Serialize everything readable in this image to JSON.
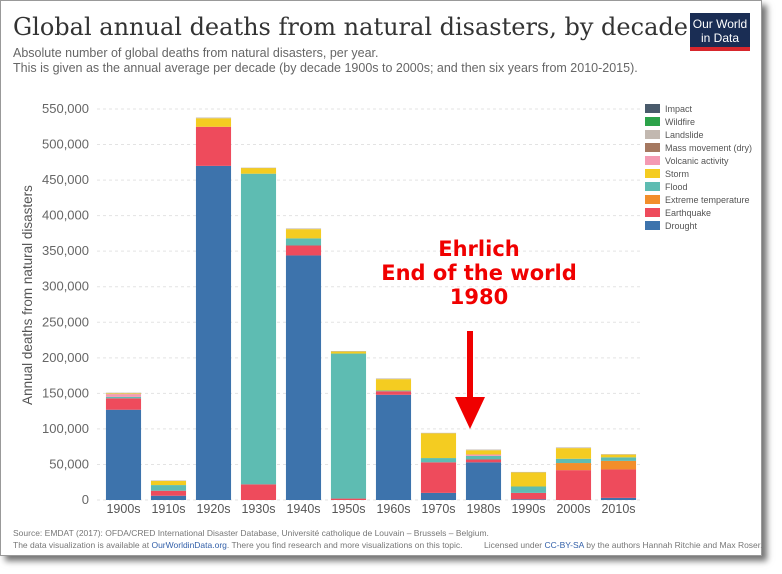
{
  "header": {
    "title": "Global annual deaths from natural disasters, by decade",
    "subtitle_line1": "Absolute number of global deaths from natural disasters, per year.",
    "subtitle_line2": "This is given as the annual average per decade (by decade 1900s to 2000s; and then six years from 2010-2015)."
  },
  "logo": {
    "line1": "Our World",
    "line2": "in Data"
  },
  "annotation": {
    "line1": "Ehrlich",
    "line2": "End of the world",
    "line3": "1980"
  },
  "footer": {
    "source": "Source: EMDAT (2017): OFDA/CRED International Disaster Database, Université catholique de Louvain – Brussels – Belgium.",
    "viz_prefix": "The data visualization is available at",
    "viz_link": "OurWorldinData.org",
    "viz_suffix": ". There you find research and more visualizations on this topic.",
    "license_prefix": "Licensed under",
    "license_link": "CC-BY-SA",
    "license_suffix": "by the authors Hannah Ritchie and Max Roser."
  },
  "chart_data": {
    "type": "bar",
    "stacked": true,
    "ylabel": "Annual deaths from natural disasters",
    "ylim": [
      0,
      550000
    ],
    "yticks": [
      0,
      50000,
      100000,
      150000,
      200000,
      250000,
      300000,
      350000,
      400000,
      450000,
      500000,
      550000
    ],
    "ytick_labels": [
      "0",
      "50,000",
      "100,000",
      "150,000",
      "200,000",
      "250,000",
      "300,000",
      "350,000",
      "400,000",
      "450,000",
      "500,000",
      "550,000"
    ],
    "grid": true,
    "legend_position": "right",
    "categories": [
      "1900s",
      "1910s",
      "1920s",
      "1930s",
      "1940s",
      "1950s",
      "1960s",
      "1970s",
      "1980s",
      "1990s",
      "2000s",
      "2010s"
    ],
    "series": [
      {
        "name": "Drought",
        "color": "#3d73ac",
        "values": [
          127000,
          6000,
          470000,
          0,
          344000,
          0,
          148000,
          10000,
          53000,
          1000,
          0,
          3000
        ]
      },
      {
        "name": "Earthquake",
        "color": "#ee4b5c",
        "values": [
          16000,
          7000,
          55000,
          22000,
          14000,
          2000,
          5000,
          43000,
          4000,
          9000,
          42000,
          40000
        ]
      },
      {
        "name": "Extreme temperature",
        "color": "#f28e2b",
        "values": [
          0,
          0,
          0,
          0,
          0,
          0,
          0,
          0,
          0,
          0,
          10000,
          12000
        ]
      },
      {
        "name": "Flood",
        "color": "#5ebcb2",
        "values": [
          2000,
          8000,
          0,
          437000,
          10000,
          204000,
          1000,
          6000,
          5000,
          9000,
          6000,
          5000
        ]
      },
      {
        "name": "Volcanic activity",
        "color": "#f49ab3",
        "values": [
          4000,
          0,
          0,
          0,
          0,
          0,
          0,
          0,
          2000,
          0,
          0,
          0
        ]
      },
      {
        "name": "Mass movement (dry)",
        "color": "#a57860",
        "values": [
          0,
          0,
          0,
          0,
          0,
          0,
          0,
          0,
          0,
          0,
          0,
          0
        ]
      },
      {
        "name": "Storm",
        "color": "#f4cc21",
        "values": [
          1000,
          6000,
          12000,
          8000,
          13000,
          3000,
          16000,
          35000,
          6000,
          20000,
          15000,
          4000
        ]
      },
      {
        "name": "Landslide",
        "color": "#c2b8b0",
        "values": [
          1000,
          500,
          1000,
          500,
          1000,
          500,
          1000,
          500,
          1000,
          500,
          1000,
          500
        ]
      },
      {
        "name": "Wildfire",
        "color": "#2ca34a",
        "values": [
          0,
          0,
          0,
          0,
          0,
          0,
          0,
          0,
          0,
          0,
          0,
          0
        ]
      },
      {
        "name": "Impact",
        "color": "#4a5b6c",
        "values": [
          0,
          0,
          0,
          0,
          0,
          0,
          0,
          0,
          0,
          0,
          0,
          0
        ]
      }
    ],
    "legend_order": [
      "Impact",
      "Wildfire",
      "Landslide",
      "Mass movement (dry)",
      "Volcanic activity",
      "Storm",
      "Flood",
      "Extreme temperature",
      "Earthquake",
      "Drought"
    ]
  }
}
